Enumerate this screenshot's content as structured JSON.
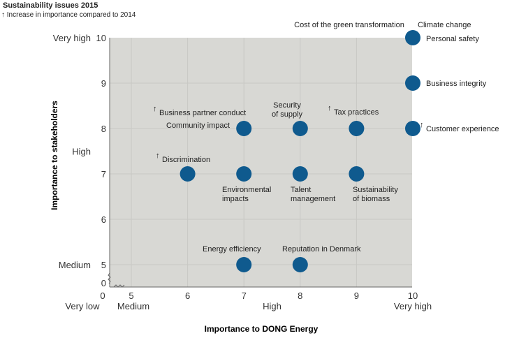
{
  "chart_data": {
    "type": "scatter",
    "title": "Sustainability issues 2015",
    "subtitle": "Increase in importance compared to 2014",
    "arrow_symbol": "↑",
    "xlabel": "Importance to DONG Energy",
    "ylabel": "Importance to stakeholders",
    "xlim": [
      4.6,
      10
    ],
    "ylim": [
      4.5,
      10
    ],
    "axis_break": true,
    "grid": true,
    "x_ticks": [
      "0",
      "5",
      "6",
      "7",
      "8",
      "9",
      "10"
    ],
    "y_ticks": [
      "0",
      "5",
      "6",
      "7",
      "8",
      "9",
      "10"
    ],
    "x_categories": [
      {
        "label": "Very low",
        "at": 0
      },
      {
        "label": "Medium",
        "at": 5
      },
      {
        "label": "High",
        "at": 7.5
      },
      {
        "label": "Very high",
        "at": 10
      }
    ],
    "y_categories": [
      {
        "label": "Medium",
        "at": 5
      },
      {
        "label": "High",
        "at": 7.5
      },
      {
        "label": "Very high",
        "at": 10
      }
    ],
    "colors": {
      "background": "#d8d8d4",
      "point": "#0f5a8e",
      "grid": "#c8c8c4"
    },
    "points": [
      {
        "label": "Cost of the green transformation",
        "x": 10,
        "y": 10,
        "increase": false
      },
      {
        "label": "Climate change",
        "x": 10,
        "y": 10,
        "increase": false
      },
      {
        "label": "Personal safety",
        "x": 10,
        "y": 10,
        "increase": false
      },
      {
        "label": "Business integrity",
        "x": 10,
        "y": 9,
        "increase": false
      },
      {
        "label": "Customer experience",
        "x": 10,
        "y": 8,
        "increase": true
      },
      {
        "label": "Tax practices",
        "x": 9,
        "y": 8,
        "increase": true
      },
      {
        "label": "Security of supply",
        "x": 8,
        "y": 8,
        "increase": false
      },
      {
        "label": "Business partner conduct",
        "x": 7,
        "y": 8,
        "increase": true
      },
      {
        "label": "Community impact",
        "x": 7,
        "y": 8,
        "increase": false
      },
      {
        "label": "Discrimination",
        "x": 6,
        "y": 7,
        "increase": true
      },
      {
        "label": "Environmental impacts",
        "x": 7,
        "y": 7,
        "increase": false
      },
      {
        "label": "Talent management",
        "x": 8,
        "y": 7,
        "increase": false
      },
      {
        "label": "Sustainability of biomass",
        "x": 9,
        "y": 7,
        "increase": false
      },
      {
        "label": "Energy efficiency",
        "x": 7,
        "y": 5,
        "increase": false
      },
      {
        "label": "Reputation in Denmark",
        "x": 8,
        "y": 5,
        "increase": false
      }
    ]
  }
}
